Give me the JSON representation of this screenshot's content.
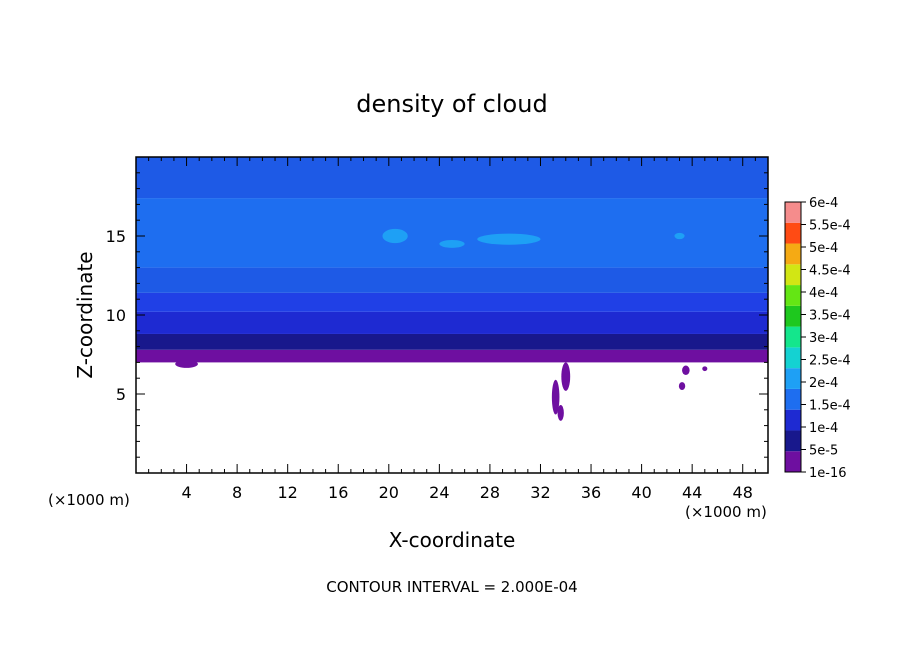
{
  "chart_data": {
    "type": "heatmap",
    "title": "density of cloud",
    "xlabel": "X-coordinate",
    "ylabel": "Z-coordinate",
    "x_unit": "(×1000 m)",
    "z_unit": "(×1000 m)",
    "footer": "CONTOUR INTERVAL = 2.000E-04",
    "xlim": [
      0,
      50
    ],
    "ylim": [
      0,
      20
    ],
    "x_ticks": [
      4,
      8,
      12,
      16,
      20,
      24,
      28,
      32,
      36,
      40,
      44,
      48
    ],
    "y_ticks": [
      5,
      10,
      15
    ],
    "colorbar": {
      "levels": [
        "1e-16",
        "5e-5",
        "1e-4",
        "1.5e-4",
        "2e-4",
        "2.5e-4",
        "3e-4",
        "3.5e-4",
        "4e-4",
        "4.5e-4",
        "5e-4",
        "5.5e-4",
        "6e-4"
      ],
      "colors": [
        "#6e0fa0",
        "#18188c",
        "#1e2ad2",
        "#1e6ef0",
        "#1ea0f5",
        "#14d2d2",
        "#14e68c",
        "#1ec81e",
        "#64e614",
        "#d2e614",
        "#f5aa14",
        "#ff4b14",
        "#f58c8c"
      ]
    },
    "layers": [
      {
        "z_from": 7.0,
        "z_to": 7.8,
        "color": "#6e0fa0"
      },
      {
        "z_from": 7.8,
        "z_to": 8.8,
        "color": "#18188c"
      },
      {
        "z_from": 8.8,
        "z_to": 10.2,
        "color": "#1e2ad2"
      },
      {
        "z_from": 10.2,
        "z_to": 11.4,
        "color": "#2040e6"
      },
      {
        "z_from": 11.4,
        "z_to": 13.0,
        "color": "#1e5ae6"
      },
      {
        "z_from": 13.0,
        "z_to": 17.4,
        "color": "#1e6ef0"
      },
      {
        "z_from": 17.4,
        "z_to": 20.0,
        "color": "#1e5ae6"
      }
    ],
    "patches": [
      {
        "x": 20.5,
        "z": 15.0,
        "rx": 1.0,
        "rz": 0.45,
        "color": "#1ea0f5"
      },
      {
        "x": 25.0,
        "z": 14.5,
        "rx": 1.0,
        "rz": 0.25,
        "color": "#1ea0f5"
      },
      {
        "x": 29.5,
        "z": 14.8,
        "rx": 2.5,
        "rz": 0.35,
        "color": "#1ea0f5"
      },
      {
        "x": 43.0,
        "z": 15.0,
        "rx": 0.4,
        "rz": 0.2,
        "color": "#1ea0f5"
      },
      {
        "x": 4.0,
        "z": 6.9,
        "rx": 0.9,
        "rz": 0.25,
        "color": "#6e0fa0"
      },
      {
        "x": 34.0,
        "z": 6.1,
        "rx": 0.35,
        "rz": 0.9,
        "color": "#6e0fa0"
      },
      {
        "x": 33.2,
        "z": 4.8,
        "rx": 0.3,
        "rz": 1.1,
        "color": "#6e0fa0"
      },
      {
        "x": 33.6,
        "z": 3.8,
        "rx": 0.25,
        "rz": 0.5,
        "color": "#6e0fa0"
      },
      {
        "x": 43.5,
        "z": 6.5,
        "rx": 0.3,
        "rz": 0.3,
        "color": "#6e0fa0"
      },
      {
        "x": 43.2,
        "z": 5.5,
        "rx": 0.25,
        "rz": 0.25,
        "color": "#6e0fa0"
      },
      {
        "x": 45.0,
        "z": 6.6,
        "rx": 0.2,
        "rz": 0.15,
        "color": "#6e0fa0"
      }
    ]
  }
}
